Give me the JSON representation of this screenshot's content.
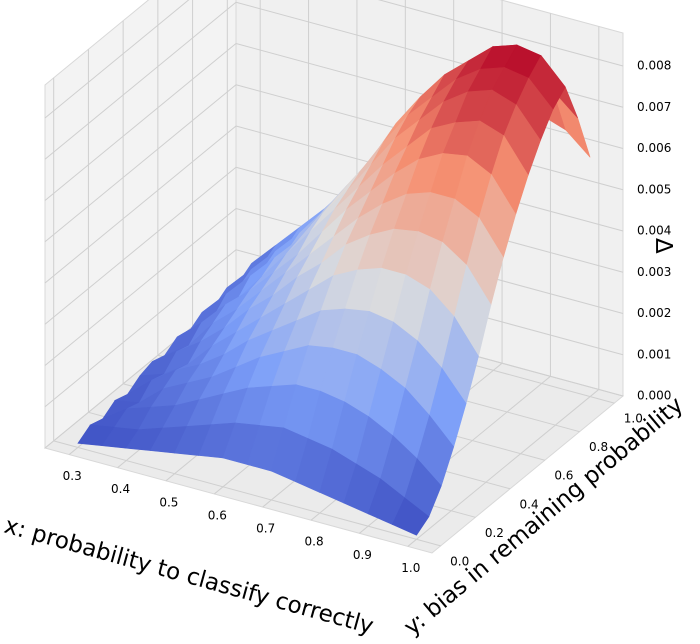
{
  "chart_data": {
    "type": "surface3d",
    "title": "",
    "xlabel": "x: probability to classify correctly",
    "ylabel": "y: bias in remaining probability",
    "zlabel": "Δ",
    "xlim": [
      0.25,
      1.05
    ],
    "ylim": [
      -0.05,
      1.05
    ],
    "zlim": [
      0,
      0.0088
    ],
    "xticks": [
      "0.3",
      "0.4",
      "0.5",
      "0.6",
      "0.7",
      "0.8",
      "0.9",
      "1.0"
    ],
    "yticks": [
      "0.0",
      "0.2",
      "0.4",
      "0.6",
      "0.8",
      "1.0"
    ],
    "zticks": [
      "0.000",
      "0.001",
      "0.002",
      "0.003",
      "0.004",
      "0.005",
      "0.006",
      "0.007",
      "0.008"
    ],
    "colormap": "coolwarm",
    "grid": true,
    "surface": {
      "x": [
        0.3,
        0.35,
        0.4,
        0.45,
        0.5,
        0.55,
        0.6,
        0.65,
        0.7,
        0.75,
        0.8,
        0.85,
        0.9,
        0.95,
        1.0
      ],
      "y": [
        0.0,
        0.0714,
        0.1429,
        0.2143,
        0.2857,
        0.3571,
        0.4286,
        0.5,
        0.5714,
        0.6429,
        0.7143,
        0.7857,
        0.8571,
        0.9286,
        1.0
      ],
      "z": [
        [
          0.0001,
          0.0003,
          0.0002,
          0.0004,
          0.0003,
          0.0005,
          0.0006,
          0.0005,
          0.0007,
          0.0006,
          0.0008,
          0.0007,
          0.0009,
          0.0008,
          0.001
        ],
        [
          0.0002,
          0.0004,
          0.0006,
          0.0005,
          0.0008,
          0.0007,
          0.001,
          0.0009,
          0.0012,
          0.0011,
          0.0014,
          0.0013,
          0.0015,
          0.0014,
          0.0016
        ],
        [
          0.0003,
          0.0005,
          0.0008,
          0.001,
          0.0012,
          0.0011,
          0.0014,
          0.0016,
          0.0018,
          0.0017,
          0.002,
          0.0019,
          0.0021,
          0.002,
          0.0022
        ],
        [
          0.0004,
          0.0007,
          0.001,
          0.0013,
          0.0015,
          0.0017,
          0.0019,
          0.0021,
          0.0023,
          0.0024,
          0.0026,
          0.0025,
          0.0027,
          0.0026,
          0.0028
        ],
        [
          0.0005,
          0.0009,
          0.0013,
          0.0016,
          0.0019,
          0.0022,
          0.0025,
          0.0027,
          0.0029,
          0.0031,
          0.0032,
          0.0033,
          0.0034,
          0.0033,
          0.0035
        ],
        [
          0.0006,
          0.0011,
          0.0016,
          0.002,
          0.0024,
          0.0027,
          0.003,
          0.0033,
          0.0035,
          0.0038,
          0.004,
          0.0041,
          0.0042,
          0.004,
          0.0043
        ],
        [
          0.0007,
          0.0013,
          0.0019,
          0.0024,
          0.0028,
          0.0032,
          0.0036,
          0.0039,
          0.0042,
          0.0045,
          0.0047,
          0.0049,
          0.005,
          0.0048,
          0.0046
        ],
        [
          0.0007,
          0.0014,
          0.0021,
          0.0027,
          0.0032,
          0.0037,
          0.0041,
          0.0045,
          0.0049,
          0.0052,
          0.0055,
          0.0058,
          0.006,
          0.0056,
          0.0052
        ],
        [
          0.0007,
          0.0015,
          0.0023,
          0.003,
          0.0036,
          0.0042,
          0.0047,
          0.0051,
          0.0055,
          0.0059,
          0.0063,
          0.0066,
          0.0068,
          0.0062,
          0.0057
        ],
        [
          0.0006,
          0.0014,
          0.0023,
          0.0031,
          0.0038,
          0.0045,
          0.0051,
          0.0056,
          0.0061,
          0.0065,
          0.0069,
          0.0072,
          0.0075,
          0.0068,
          0.006
        ],
        [
          0.0005,
          0.0013,
          0.0022,
          0.0031,
          0.0039,
          0.0047,
          0.0054,
          0.006,
          0.0066,
          0.0071,
          0.0075,
          0.0078,
          0.008,
          0.0072,
          0.0062
        ],
        [
          0.0004,
          0.0011,
          0.002,
          0.0029,
          0.0038,
          0.0047,
          0.0055,
          0.0062,
          0.0069,
          0.0074,
          0.0079,
          0.0082,
          0.0085,
          0.0076,
          0.0064
        ],
        [
          0.0003,
          0.0009,
          0.0017,
          0.0026,
          0.0035,
          0.0045,
          0.0054,
          0.0062,
          0.007,
          0.0076,
          0.0081,
          0.0084,
          0.0087,
          0.0077,
          0.0065
        ],
        [
          0.0002,
          0.0006,
          0.0013,
          0.0021,
          0.003,
          0.004,
          0.005,
          0.0059,
          0.0067,
          0.0074,
          0.0079,
          0.0083,
          0.0086,
          0.0075,
          0.0063
        ],
        [
          0.0001,
          0.0003,
          0.0008,
          0.0015,
          0.0023,
          0.0032,
          0.0042,
          0.0051,
          0.0059,
          0.0066,
          0.0072,
          0.0077,
          0.008,
          0.007,
          0.0058
        ]
      ]
    }
  }
}
